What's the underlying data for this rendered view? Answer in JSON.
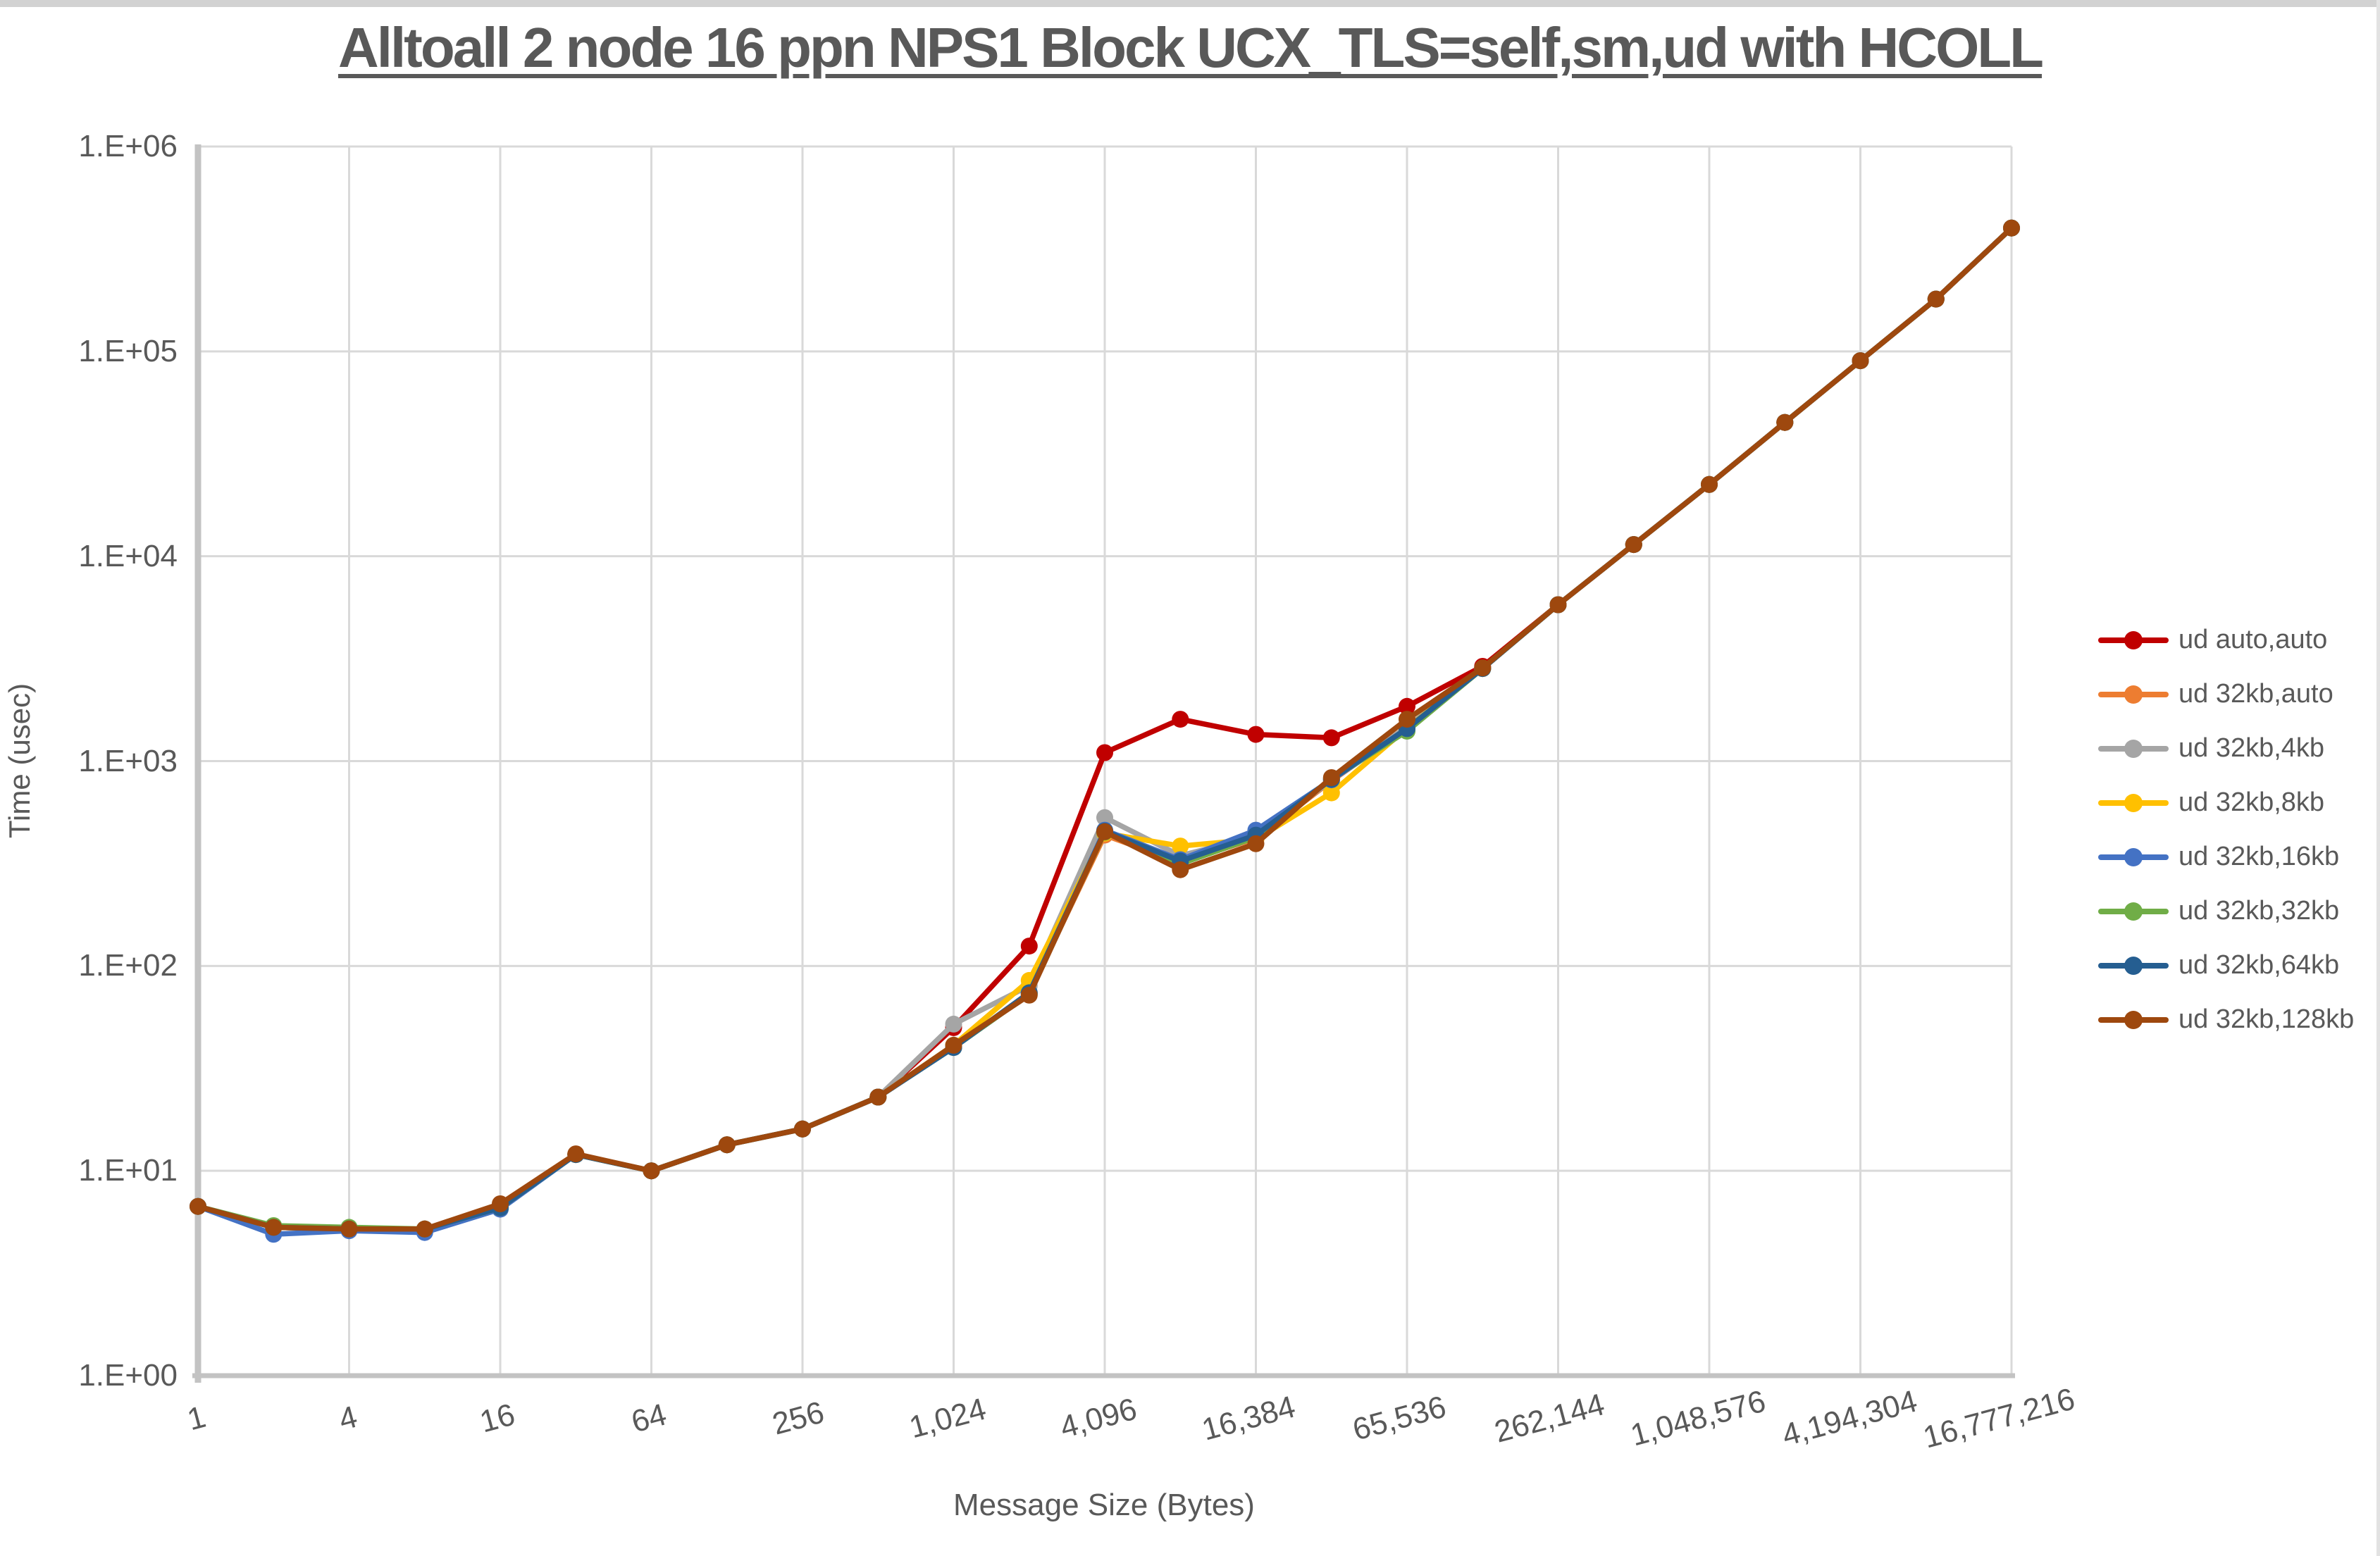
{
  "title": "Alltoall 2 node 16 ppn NPS1 Block UCX_TLS=self,sm,ud with HCOLL",
  "axes": {
    "y_title": "Time (usec)",
    "x_title": "Message Size (Bytes)",
    "y_ticks": [
      "1.E+00",
      "1.E+01",
      "1.E+02",
      "1.E+03",
      "1.E+04",
      "1.E+05",
      "1.E+06"
    ],
    "x_ticks": [
      "1",
      "4",
      "16",
      "64",
      "256",
      "1,024",
      "4,096",
      "16,384",
      "65,536",
      "262,144",
      "1,048,576",
      "4,194,304",
      "16,777,216"
    ]
  },
  "chart_data": {
    "type": "line",
    "title": "Alltoall 2 node 16 ppn NPS1 Block UCX_TLS=self,sm,ud with HCOLL",
    "xlabel": "Message Size (Bytes)",
    "ylabel": "Time (usec)",
    "x_scale": "log2",
    "y_scale": "log10",
    "xlim": [
      1,
      16777216
    ],
    "ylim": [
      1,
      1000000
    ],
    "grid": true,
    "legend_position": "right",
    "x": [
      1,
      2,
      4,
      8,
      16,
      32,
      64,
      128,
      256,
      512,
      1024,
      2048,
      4096,
      8192,
      16384,
      32768,
      65536,
      131072,
      262144,
      524288,
      1048576,
      2097152,
      4194304,
      8388608,
      16777216
    ],
    "series": [
      {
        "name": "ud auto,auto",
        "color": "#C00000",
        "values": [
          6.7,
          5.3,
          5.2,
          5.2,
          6.6,
          12,
          10,
          13.4,
          16,
          22.9,
          50,
          125,
          1100,
          1600,
          1350,
          1300,
          1850,
          2900,
          5800,
          11400,
          22400,
          45000,
          90000,
          180000,
          400000
        ]
      },
      {
        "name": "ud 32kb,auto",
        "color": "#ED7D31",
        "values": [
          6.7,
          5.3,
          5.2,
          5.2,
          6.6,
          12,
          10,
          13.4,
          16,
          22.9,
          40,
          74,
          435,
          320,
          420,
          800,
          1460,
          2830,
          5800,
          11400,
          22400,
          45000,
          90000,
          180000,
          400000
        ]
      },
      {
        "name": "ud 32kb,4kb",
        "color": "#A5A5A5",
        "values": [
          6.7,
          5.3,
          5.2,
          5.2,
          6.6,
          12,
          10,
          13.4,
          16,
          22.9,
          52,
          80,
          530,
          345,
          430,
          805,
          1470,
          2830,
          5800,
          11400,
          22400,
          45000,
          90000,
          180000,
          400000
        ]
      },
      {
        "name": "ud 32kb,8kb",
        "color": "#FFC000",
        "values": [
          6.7,
          5.3,
          5.2,
          5.2,
          6.6,
          12,
          10,
          13.4,
          16,
          22.9,
          41,
          85,
          445,
          385,
          415,
          700,
          1450,
          2830,
          5800,
          11400,
          22400,
          45000,
          90000,
          180000,
          400000
        ]
      },
      {
        "name": "ud 32kb,16kb",
        "color": "#4472C4",
        "values": [
          6.7,
          4.9,
          5.1,
          5.0,
          6.5,
          12,
          10,
          13.4,
          16,
          22.9,
          40,
          73,
          460,
          330,
          460,
          810,
          1420,
          2830,
          5800,
          11400,
          22400,
          45000,
          90000,
          180000,
          400000
        ]
      },
      {
        "name": "ud 32kb,32kb",
        "color": "#70AD47",
        "values": [
          6.7,
          5.4,
          5.3,
          5.2,
          6.6,
          12,
          10,
          13.4,
          16,
          22.9,
          40,
          73,
          450,
          315,
          425,
          820,
          1400,
          2830,
          5800,
          11400,
          22400,
          45000,
          90000,
          180000,
          400000
        ]
      },
      {
        "name": "ud 32kb,64kb",
        "color": "#255E91",
        "values": [
          6.7,
          5.3,
          5.2,
          5.2,
          6.6,
          12,
          10,
          13.4,
          16,
          22.9,
          40,
          74,
          455,
          325,
          435,
          815,
          1440,
          2830,
          5800,
          11400,
          22400,
          45000,
          90000,
          180000,
          400000
        ]
      },
      {
        "name": "ud 32kb,128kb",
        "color": "#9E480E",
        "values": [
          6.7,
          5.3,
          5.2,
          5.2,
          6.9,
          12.1,
          10,
          13.4,
          16,
          22.9,
          41,
          72,
          452,
          295,
          395,
          830,
          1600,
          2850,
          5800,
          11400,
          22400,
          45000,
          90000,
          180000,
          400000
        ]
      }
    ]
  }
}
